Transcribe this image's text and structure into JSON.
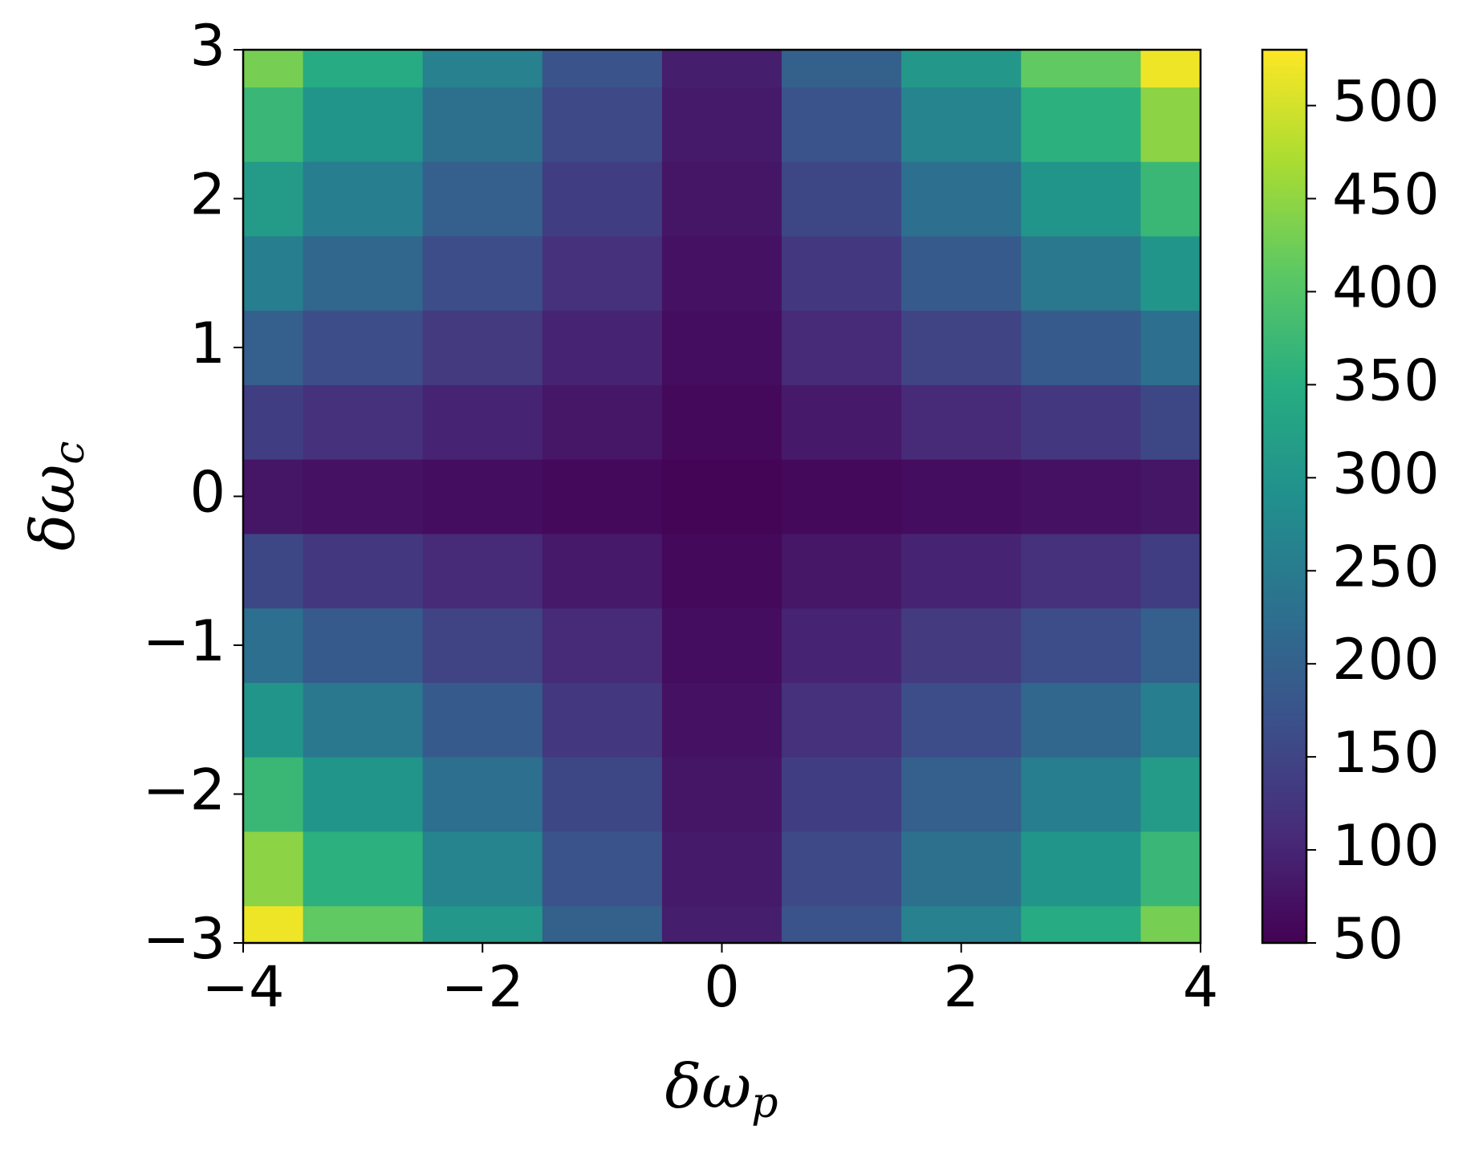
{
  "chart_data": {
    "type": "heatmap",
    "xlabel": {
      "symbol": "δω",
      "subscript": "p"
    },
    "ylabel": {
      "symbol": "δω",
      "subscript": "c"
    },
    "x": [
      -4,
      -3,
      -2,
      -1,
      0,
      1,
      2,
      3,
      4
    ],
    "y": [
      -3,
      -2.5,
      -2,
      -1.5,
      -1,
      -0.5,
      0,
      0.5,
      1,
      1.5,
      2,
      2.5,
      3
    ],
    "z": [
      [
        520,
        413,
        306,
        198,
        91,
        176,
        260,
        345,
        430
      ],
      [
        447,
        356,
        266,
        175,
        85,
        157,
        228,
        300,
        372
      ],
      [
        373,
        300,
        226,
        153,
        79,
        138,
        196,
        255,
        313
      ],
      [
        300,
        243,
        186,
        130,
        73,
        118,
        164,
        209,
        255
      ],
      [
        226,
        186,
        147,
        107,
        67,
        99,
        132,
        164,
        196
      ],
      [
        153,
        130,
        107,
        84,
        61,
        80,
        99,
        118,
        138
      ],
      [
        79,
        73,
        67,
        61,
        55,
        61,
        67,
        73,
        79
      ],
      [
        138,
        118,
        99,
        80,
        61,
        84,
        107,
        130,
        153
      ],
      [
        196,
        164,
        132,
        99,
        67,
        107,
        147,
        186,
        226
      ],
      [
        255,
        209,
        164,
        118,
        73,
        130,
        186,
        243,
        300
      ],
      [
        313,
        255,
        196,
        138,
        79,
        153,
        226,
        300,
        373
      ],
      [
        372,
        300,
        228,
        157,
        85,
        175,
        266,
        356,
        447
      ],
      [
        430,
        345,
        260,
        176,
        91,
        198,
        306,
        413,
        520
      ]
    ],
    "xlim": [
      -4,
      4
    ],
    "xticks": [
      {
        "value": -4,
        "label": "−4"
      },
      {
        "value": -2,
        "label": "−2"
      },
      0,
      2,
      4
    ],
    "ylim": [
      -3,
      3
    ],
    "yticks": [
      {
        "value": -3,
        "label": "−3"
      },
      {
        "value": -2,
        "label": "−2"
      },
      {
        "value": -1,
        "label": "−1"
      },
      0,
      1,
      2,
      3
    ],
    "colormap": "viridis",
    "clim": [
      50,
      530
    ],
    "cticks": [
      50,
      100,
      150,
      200,
      250,
      300,
      350,
      400,
      450,
      500
    ]
  }
}
